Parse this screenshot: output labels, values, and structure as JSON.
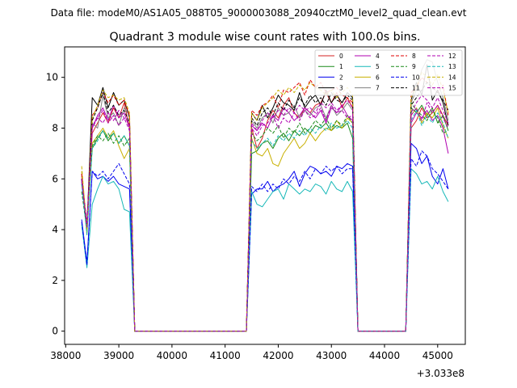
{
  "chart_data": {
    "type": "line",
    "suptitle": "Data file: modeM0/AS1A05_088T05_9000003088_20940cztM0_level2_quad_clean.evt",
    "title": "Quadrant 3 module wise count rates with 100.0s bins.",
    "xlabel": "",
    "ylabel": "",
    "x_offset_label": "+3.033e8",
    "xlim": [
      37980,
      45520
    ],
    "ylim": [
      -0.52,
      11.2
    ],
    "xticks": [
      38000,
      39000,
      40000,
      41000,
      42000,
      43000,
      44000,
      45000
    ],
    "yticks": [
      0,
      2,
      4,
      6,
      8,
      10
    ],
    "x_start": 38300,
    "x_step": 100,
    "segments": [
      {
        "from": 0,
        "to": 9,
        "kind": "data"
      },
      {
        "from": 10,
        "to": 31,
        "kind": "gap"
      },
      {
        "from": 32,
        "to": 51,
        "kind": "data"
      },
      {
        "from": 52,
        "to": 61,
        "kind": "gap"
      },
      {
        "from": 62,
        "to": 69,
        "kind": "data"
      }
    ],
    "series": [
      {
        "name": "0",
        "color": "#d62020",
        "dash": false,
        "seg1": [
          6.1,
          4.0,
          7.8,
          8.2,
          8.6,
          8.2,
          8.8,
          8.4,
          9.0,
          8.0
        ],
        "seg2": [
          8.0,
          7.2,
          7.6,
          8.3,
          8.7,
          8.4,
          8.9,
          9.2,
          8.6,
          8.4,
          8.8,
          8.6,
          8.9,
          9.0,
          9.4,
          9.0,
          9.4,
          8.8,
          9.2,
          8.8
        ],
        "seg3": [
          8.0,
          8.3,
          8.8,
          8.4,
          8.6,
          8.9,
          8.5,
          8.1
        ]
      },
      {
        "name": "1",
        "color": "#1a8a1a",
        "dash": false,
        "seg1": [
          5.8,
          4.2,
          7.2,
          7.6,
          7.9,
          7.5,
          7.8,
          7.4,
          7.7,
          7.3
        ],
        "seg2": [
          7.0,
          7.1,
          7.4,
          7.5,
          7.2,
          7.6,
          7.8,
          7.5,
          7.9,
          7.7,
          8.0,
          7.8,
          8.1,
          8.0,
          8.2,
          7.9,
          8.1,
          8.0,
          8.2,
          7.6
        ],
        "seg3": [
          8.8,
          8.6,
          8.9,
          8.5,
          8.8,
          8.2,
          8.5,
          7.9
        ]
      },
      {
        "name": "2",
        "color": "#0000ee",
        "dash": false,
        "seg1": [
          4.4,
          2.7,
          6.3,
          6.0,
          6.1,
          5.9,
          6.1,
          5.8,
          5.7,
          5.6
        ],
        "seg2": [
          5.4,
          5.6,
          5.6,
          5.9,
          5.5,
          5.7,
          5.8,
          6.0,
          6.3,
          5.7,
          6.2,
          6.5,
          6.4,
          6.2,
          6.3,
          6.1,
          6.5,
          6.4,
          6.6,
          6.5
        ],
        "seg3": [
          7.4,
          7.2,
          6.6,
          6.9,
          6.1,
          5.8,
          6.4,
          5.6
        ]
      },
      {
        "name": "3",
        "color": "#000000",
        "dash": false,
        "seg1": [
          6.0,
          4.1,
          9.2,
          8.9,
          9.6,
          8.8,
          9.4,
          8.9,
          9.1,
          8.4
        ],
        "seg2": [
          8.6,
          8.3,
          8.9,
          8.4,
          8.8,
          9.3,
          9.0,
          8.9,
          8.7,
          9.4,
          8.8,
          9.1,
          9.3,
          8.9,
          9.5,
          9.0,
          9.3,
          9.0,
          9.4,
          9.2
        ],
        "seg3": [
          9.1,
          9.8,
          9.3,
          10.5,
          9.1,
          9.5,
          9.0,
          8.1
        ]
      },
      {
        "name": "4",
        "color": "#b000b0",
        "dash": false,
        "seg1": [
          6.2,
          4.0,
          8.0,
          8.5,
          8.8,
          8.3,
          8.9,
          8.4,
          8.6,
          8.0
        ],
        "seg2": [
          8.1,
          7.9,
          8.2,
          8.0,
          8.5,
          8.3,
          8.8,
          8.6,
          8.3,
          8.5,
          8.8,
          8.6,
          8.4,
          8.7,
          8.2,
          8.8,
          8.6,
          8.9,
          8.5,
          8.3
        ],
        "seg3": [
          8.2,
          8.6,
          8.4,
          8.7,
          8.3,
          8.5,
          8.0,
          7.0
        ]
      },
      {
        "name": "5",
        "color": "#17b8b8",
        "dash": false,
        "seg1": [
          4.2,
          2.5,
          5.0,
          5.6,
          6.1,
          5.8,
          5.9,
          5.6,
          4.8,
          4.7
        ],
        "seg2": [
          5.5,
          5.0,
          4.9,
          5.2,
          5.5,
          5.6,
          5.2,
          5.8,
          5.6,
          5.4,
          5.6,
          5.5,
          5.8,
          5.7,
          5.4,
          5.9,
          5.6,
          5.5,
          5.9,
          5.5
        ],
        "seg3": [
          6.4,
          6.2,
          5.8,
          5.9,
          5.6,
          6.1,
          5.5,
          5.1
        ]
      },
      {
        "name": "6",
        "color": "#c8b000",
        "dash": false,
        "seg1": [
          6.3,
          3.8,
          7.4,
          7.7,
          8.0,
          7.6,
          7.9,
          7.3,
          6.8,
          7.2
        ],
        "seg2": [
          7.6,
          7.0,
          6.9,
          7.2,
          6.6,
          6.5,
          7.0,
          7.3,
          7.6,
          7.2,
          7.4,
          7.8,
          7.5,
          7.8,
          8.0,
          7.9,
          8.3,
          8.0,
          8.4,
          8.2
        ],
        "seg3": [
          8.5,
          8.8,
          8.2,
          8.6,
          8.4,
          8.8,
          8.1,
          7.6
        ]
      },
      {
        "name": "7",
        "color": "#808080",
        "dash": false,
        "seg1": [
          5.9,
          4.1,
          8.2,
          8.0,
          9.3,
          8.4,
          8.6,
          8.1,
          8.8,
          8.5
        ],
        "seg2": [
          8.3,
          8.0,
          8.4,
          8.6,
          8.2,
          8.8,
          8.5,
          8.6,
          8.9,
          8.4,
          8.7,
          8.5,
          8.8,
          8.9,
          8.4,
          8.9,
          8.5,
          8.7,
          9.0,
          8.7
        ],
        "seg3": [
          9.0,
          9.5,
          10.3,
          10.7,
          10.6,
          9.8,
          9.2,
          8.3
        ]
      },
      {
        "name": "8",
        "color": "#e00000",
        "dash": true,
        "seg1": [
          6.2,
          4.2,
          8.5,
          8.8,
          9.4,
          9.0,
          9.3,
          8.9,
          9.1,
          8.5
        ],
        "seg2": [
          8.7,
          8.5,
          8.9,
          9.0,
          9.3,
          8.8,
          9.5,
          9.4,
          9.6,
          9.8,
          9.3,
          9.9,
          9.6,
          9.8,
          9.4,
          9.5,
          9.6,
          9.3,
          9.2,
          9.0
        ],
        "seg3": [
          9.4,
          9.6,
          10.0,
          9.8,
          9.6,
          9.4,
          9.7,
          8.5
        ]
      },
      {
        "name": "9",
        "color": "#1a8a1a",
        "dash": true,
        "seg1": [
          5.5,
          4.0,
          7.3,
          7.7,
          7.5,
          7.8,
          7.4,
          7.7,
          7.3,
          7.6
        ],
        "seg2": [
          7.8,
          7.5,
          7.7,
          8.0,
          7.8,
          8.1,
          7.6,
          8.0,
          7.8,
          8.2,
          7.8,
          8.0,
          8.3,
          8.1,
          8.4,
          8.0,
          8.3,
          8.1,
          8.5,
          8.2
        ],
        "seg3": [
          9.0,
          8.7,
          8.5,
          8.3,
          8.7,
          8.4,
          7.8,
          7.9
        ]
      },
      {
        "name": "10",
        "color": "#0000ee",
        "dash": true,
        "seg1": [
          4.3,
          2.6,
          6.3,
          6.1,
          6.3,
          6.0,
          6.3,
          6.6,
          6.2,
          5.8
        ],
        "seg2": [
          5.7,
          5.5,
          5.8,
          5.5,
          5.8,
          5.6,
          6.0,
          5.8,
          6.1,
          5.9,
          6.3,
          6.0,
          6.4,
          6.2,
          6.5,
          6.3,
          6.5,
          6.2,
          6.4,
          6.4
        ],
        "seg3": [
          6.8,
          6.5,
          7.1,
          6.9,
          6.4,
          6.2,
          5.9,
          5.6
        ]
      },
      {
        "name": "11",
        "color": "#000000",
        "dash": true,
        "seg1": [
          6.0,
          4.2,
          8.3,
          8.8,
          9.4,
          8.6,
          8.9,
          8.5,
          8.7,
          8.2
        ],
        "seg2": [
          8.4,
          8.1,
          8.6,
          8.8,
          8.5,
          9.0,
          8.7,
          9.1,
          8.8,
          9.2,
          8.9,
          9.3,
          9.0,
          9.2,
          8.9,
          9.4,
          9.1,
          9.0,
          9.3,
          9.1
        ],
        "seg3": [
          8.9,
          9.2,
          9.5,
          9.8,
          9.6,
          9.4,
          9.1,
          8.7
        ]
      },
      {
        "name": "12",
        "color": "#b000b0",
        "dash": true,
        "seg1": [
          6.0,
          4.3,
          8.0,
          8.4,
          8.7,
          8.2,
          8.5,
          8.1,
          8.4,
          7.9
        ],
        "seg2": [
          8.0,
          7.7,
          8.1,
          8.2,
          8.5,
          8.0,
          8.4,
          8.2,
          8.6,
          8.3,
          8.7,
          8.4,
          8.5,
          8.8,
          8.3,
          8.9,
          8.6,
          8.7,
          8.4,
          8.5
        ],
        "seg3": [
          8.5,
          8.8,
          8.3,
          9.0,
          8.6,
          8.9,
          8.4,
          8.0
        ]
      },
      {
        "name": "13",
        "color": "#17b8b8",
        "dash": true,
        "seg1": [
          5.8,
          3.8,
          7.2,
          7.5,
          7.9,
          7.6,
          7.8,
          7.4,
          7.7,
          7.3
        ],
        "seg2": [
          7.5,
          7.2,
          7.4,
          7.6,
          7.3,
          7.7,
          7.5,
          7.8,
          7.6,
          7.9,
          7.7,
          8.0,
          7.8,
          8.1,
          7.9,
          8.2,
          8.0,
          8.1,
          8.3,
          8.0
        ],
        "seg3": [
          8.3,
          8.7,
          8.1,
          8.5,
          8.2,
          8.6,
          8.2,
          7.6
        ]
      },
      {
        "name": "14",
        "color": "#c8b000",
        "dash": true,
        "seg1": [
          6.5,
          4.0,
          8.4,
          8.9,
          9.5,
          9.2,
          9.3,
          9.1,
          9.2,
          8.6
        ],
        "seg2": [
          8.6,
          8.3,
          8.8,
          9.0,
          9.2,
          9.5,
          9.3,
          9.6,
          9.4,
          9.7,
          9.5,
          9.8,
          9.6,
          9.5,
          9.3,
          9.5,
          9.2,
          9.4,
          9.6,
          9.3
        ],
        "seg3": [
          9.2,
          9.6,
          10.2,
          10.0,
          9.7,
          10.1,
          9.5,
          8.6
        ]
      },
      {
        "name": "15",
        "color": "#b000b0",
        "dash": true,
        "seg1": [
          5.9,
          4.1,
          8.1,
          8.4,
          8.2,
          8.6,
          8.3,
          8.7,
          8.4,
          8.2
        ],
        "seg2": [
          8.2,
          7.9,
          8.3,
          8.6,
          8.4,
          8.7,
          8.5,
          8.8,
          8.6,
          8.9,
          8.7,
          8.8,
          8.6,
          9.0,
          8.8,
          9.0,
          8.7,
          8.9,
          9.1,
          8.8
        ],
        "seg3": [
          8.6,
          9.0,
          9.3,
          9.1,
          8.8,
          9.2,
          8.7,
          8.2
        ]
      }
    ]
  }
}
